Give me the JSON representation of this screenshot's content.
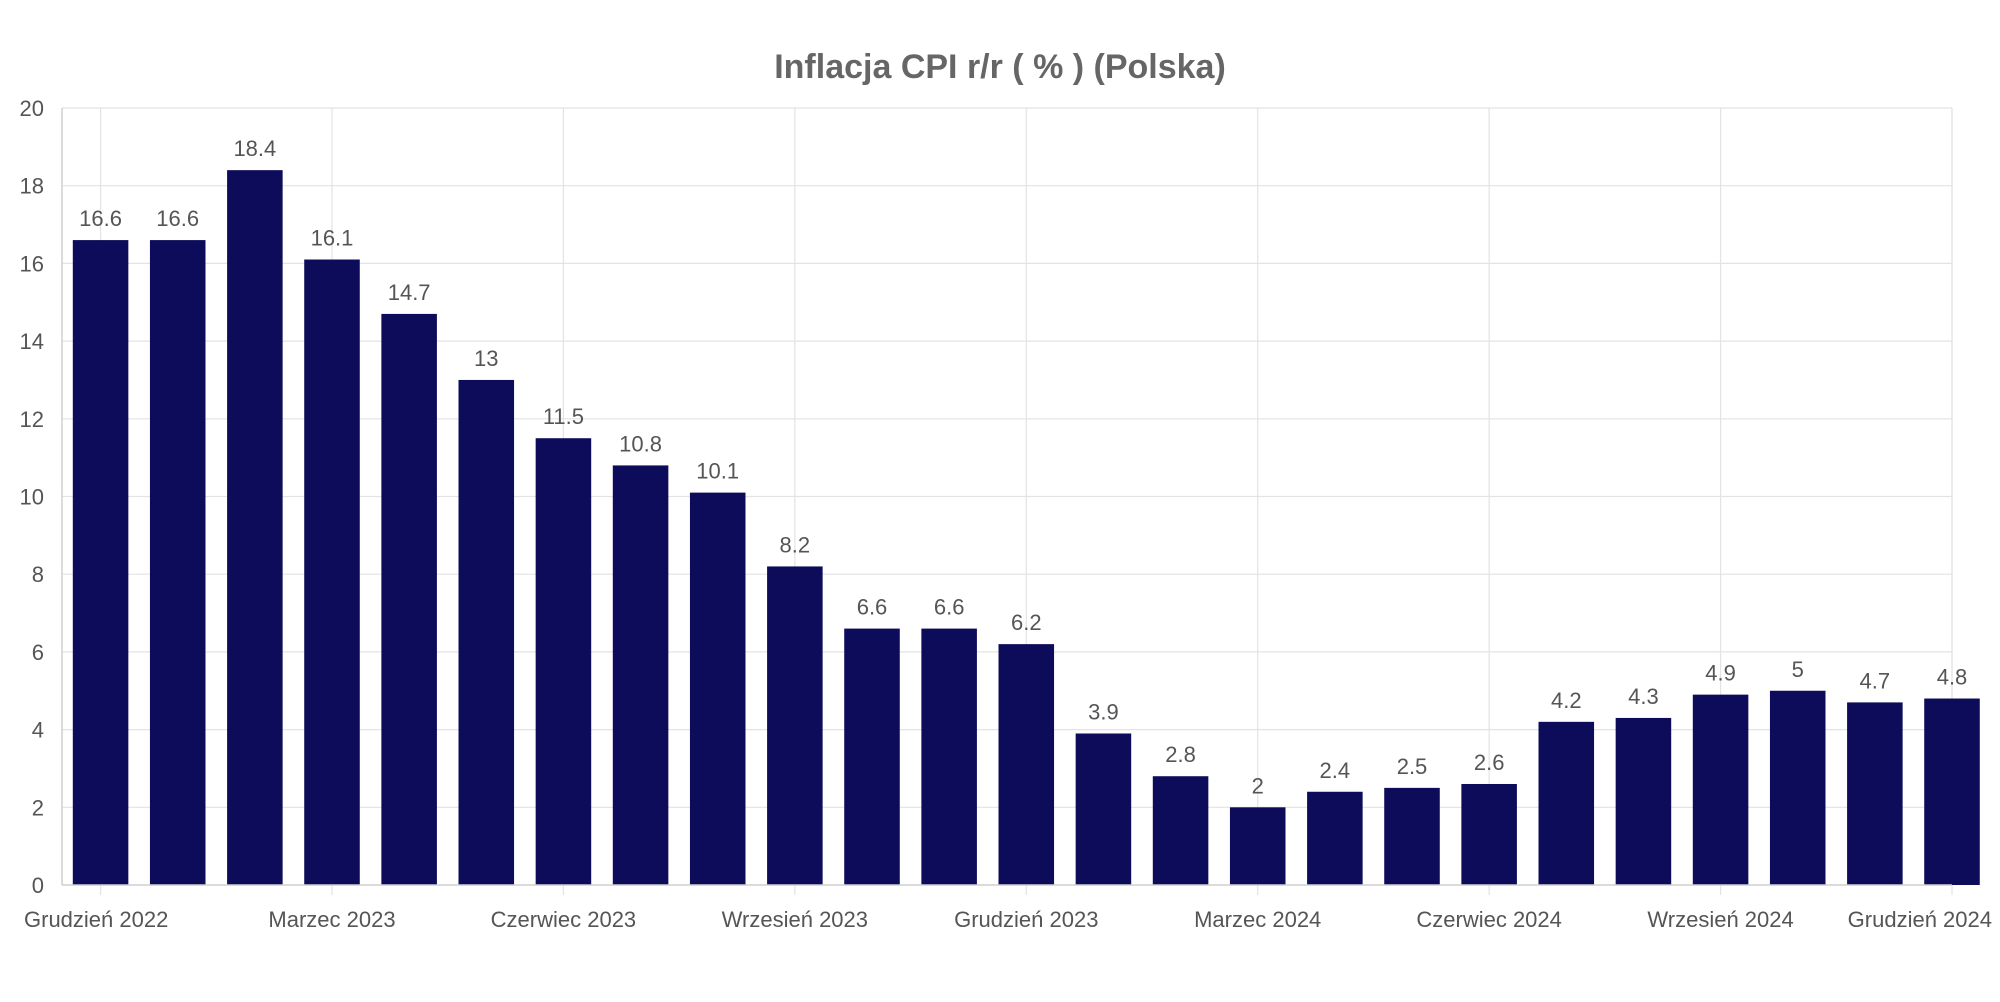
{
  "chart_data": {
    "type": "bar",
    "title": "Inflacja CPI r/r ( % ) (Polska)",
    "xlabel": "",
    "ylabel": "",
    "ylim": [
      0,
      20
    ],
    "yticks": [
      0,
      2,
      4,
      6,
      8,
      10,
      12,
      14,
      16,
      18,
      20
    ],
    "grid": true,
    "bar_color": "#0d0c5a",
    "x_tick_labels": [
      {
        "index": 0,
        "label": "Grudzień 2022"
      },
      {
        "index": 3,
        "label": "Marzec 2023"
      },
      {
        "index": 6,
        "label": "Czerwiec 2023"
      },
      {
        "index": 9,
        "label": "Wrzesień 2023"
      },
      {
        "index": 12,
        "label": "Grudzień 2023"
      },
      {
        "index": 15,
        "label": "Marzec 2024"
      },
      {
        "index": 18,
        "label": "Czerwiec 2024"
      },
      {
        "index": 21,
        "label": "Wrzesień 2024"
      },
      {
        "index": 24,
        "label": "Grudzień 2024"
      }
    ],
    "values": [
      16.6,
      16.6,
      18.4,
      16.1,
      14.7,
      13,
      11.5,
      10.8,
      10.1,
      8.2,
      6.6,
      6.6,
      6.2,
      3.9,
      2.8,
      2,
      2.4,
      2.5,
      2.6,
      4.2,
      4.3,
      4.9,
      5,
      4.7,
      4.8
    ]
  }
}
